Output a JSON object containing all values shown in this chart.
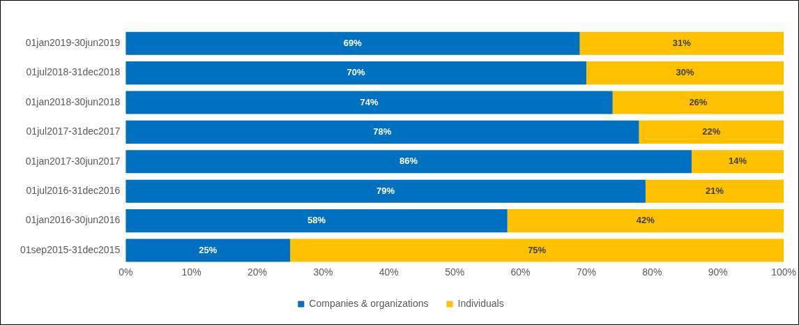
{
  "chart_data": {
    "type": "bar",
    "orientation": "horizontal",
    "stacked": true,
    "categories": [
      "01jan2019-30jun2019",
      "01jul2018-31dec2018",
      "01jan2018-30jun2018",
      "01jul2017-31dec2017",
      "01jan2017-30jun2017",
      "01jul2016-31dec2016",
      "01jan2016-30jun2016",
      "01sep2015-31dec2015"
    ],
    "series": [
      {
        "name": "Companies & organizations",
        "color": "#0070c0",
        "values": [
          69,
          70,
          74,
          78,
          86,
          79,
          58,
          25
        ],
        "value_labels": [
          "69%",
          "70%",
          "74%",
          "78%",
          "86%",
          "79%",
          "58%",
          "25%"
        ]
      },
      {
        "name": "Individuals",
        "color": "#ffc000",
        "values": [
          31,
          30,
          26,
          22,
          14,
          21,
          42,
          75
        ],
        "value_labels": [
          "31%",
          "30%",
          "26%",
          "22%",
          "14%",
          "21%",
          "42%",
          "75%"
        ]
      }
    ],
    "xlim": [
      0,
      100
    ],
    "xticks": [
      {
        "value": 0,
        "label": "0%"
      },
      {
        "value": 10,
        "label": "10%"
      },
      {
        "value": 20,
        "label": "20%"
      },
      {
        "value": 30,
        "label": "30%"
      },
      {
        "value": 40,
        "label": "40%"
      },
      {
        "value": 50,
        "label": "50%"
      },
      {
        "value": 60,
        "label": "60%"
      },
      {
        "value": 70,
        "label": "70%"
      },
      {
        "value": 80,
        "label": "80%"
      },
      {
        "value": 90,
        "label": "90%"
      },
      {
        "value": 100,
        "label": "100%"
      }
    ],
    "grid": false,
    "legend": "bottom"
  }
}
